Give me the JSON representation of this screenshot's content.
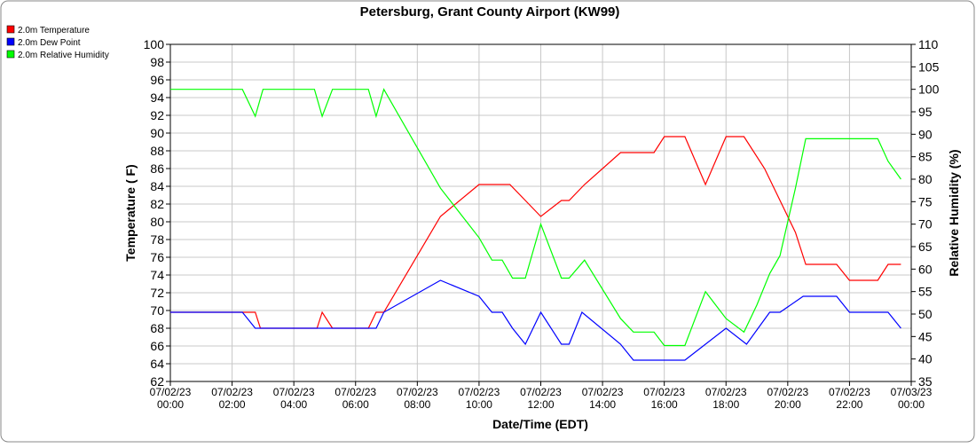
{
  "chart_data": {
    "type": "line",
    "title": "Petersburg, Grant County Airport (KW99)",
    "x_label": "Date/Time (EDT)",
    "y_label": "Temperature ( F)",
    "y2_label": "Relative Humidity (%)",
    "xlim": [
      "2023-07-02T00:00",
      "2023-07-03T00:00"
    ],
    "xticks": [
      {
        "value": "2023-07-02T00:00",
        "label": [
          "07/02/23",
          "00:00"
        ]
      },
      {
        "value": "2023-07-02T02:00",
        "label": [
          "07/02/23",
          "02:00"
        ]
      },
      {
        "value": "2023-07-02T04:00",
        "label": [
          "07/02/23",
          "04:00"
        ]
      },
      {
        "value": "2023-07-02T06:00",
        "label": [
          "07/02/23",
          "06:00"
        ]
      },
      {
        "value": "2023-07-02T08:00",
        "label": [
          "07/02/23",
          "08:00"
        ]
      },
      {
        "value": "2023-07-02T10:00",
        "label": [
          "07/02/23",
          "10:00"
        ]
      },
      {
        "value": "2023-07-02T12:00",
        "label": [
          "07/02/23",
          "12:00"
        ]
      },
      {
        "value": "2023-07-02T14:00",
        "label": [
          "07/02/23",
          "14:00"
        ]
      },
      {
        "value": "2023-07-02T16:00",
        "label": [
          "07/02/23",
          "16:00"
        ]
      },
      {
        "value": "2023-07-02T18:00",
        "label": [
          "07/02/23",
          "18:00"
        ]
      },
      {
        "value": "2023-07-02T20:00",
        "label": [
          "07/02/23",
          "20:00"
        ]
      },
      {
        "value": "2023-07-02T22:00",
        "label": [
          "07/02/23",
          "22:00"
        ]
      },
      {
        "value": "2023-07-03T00:00",
        "label": [
          "07/03/23",
          "00:00"
        ]
      }
    ],
    "ylim": [
      62,
      100
    ],
    "yticks": [
      62,
      64,
      66,
      68,
      70,
      72,
      74,
      76,
      78,
      80,
      82,
      84,
      86,
      88,
      90,
      92,
      94,
      96,
      98,
      100
    ],
    "y2lim": [
      35,
      110
    ],
    "y2ticks": [
      35,
      40,
      45,
      50,
      55,
      60,
      65,
      70,
      75,
      80,
      85,
      90,
      95,
      100,
      105,
      110
    ],
    "grid": true,
    "legend": "top-left",
    "series": [
      {
        "name": "2.0m Temperature",
        "color": "#ff0000",
        "x": [
          "2023-07-02T00:00",
          "2023-07-02T02:45",
          "2023-07-02T02:55",
          "2023-07-02T04:45",
          "2023-07-02T04:55",
          "2023-07-02T05:15",
          "2023-07-02T06:25",
          "2023-07-02T06:40",
          "2023-07-02T06:55",
          "2023-07-02T08:45",
          "2023-07-02T10:00",
          "2023-07-02T11:00",
          "2023-07-02T11:30",
          "2023-07-02T12:00",
          "2023-07-02T12:40",
          "2023-07-02T12:55",
          "2023-07-02T13:25",
          "2023-07-02T14:35",
          "2023-07-02T15:40",
          "2023-07-02T16:00",
          "2023-07-02T16:40",
          "2023-07-02T17:20",
          "2023-07-02T18:00",
          "2023-07-02T18:35",
          "2023-07-02T19:15",
          "2023-07-02T20:15",
          "2023-07-02T20:35",
          "2023-07-02T21:35",
          "2023-07-02T22:00",
          "2023-07-02T22:55",
          "2023-07-02T23:15",
          "2023-07-02T23:40"
        ],
        "values": [
          69.8,
          69.8,
          68,
          68,
          69.8,
          68,
          68,
          69.8,
          69.8,
          80.6,
          84.2,
          84.2,
          82.4,
          80.6,
          82.4,
          82.4,
          84.2,
          87.8,
          87.8,
          89.6,
          89.6,
          84.2,
          89.6,
          89.6,
          86,
          78.8,
          75.2,
          75.2,
          73.4,
          73.4,
          75.2,
          75.2
        ]
      },
      {
        "name": "2.0m Dew Point",
        "color": "#0000ff",
        "x": [
          "2023-07-02T00:00",
          "2023-07-02T02:20",
          "2023-07-02T02:45",
          "2023-07-02T06:40",
          "2023-07-02T06:55",
          "2023-07-02T08:45",
          "2023-07-02T10:00",
          "2023-07-02T10:25",
          "2023-07-02T10:45",
          "2023-07-02T11:05",
          "2023-07-02T11:30",
          "2023-07-02T12:00",
          "2023-07-02T12:40",
          "2023-07-02T12:55",
          "2023-07-02T13:20",
          "2023-07-02T14:35",
          "2023-07-02T15:00",
          "2023-07-02T16:40",
          "2023-07-02T18:00",
          "2023-07-02T18:40",
          "2023-07-02T19:25",
          "2023-07-02T19:45",
          "2023-07-02T20:30",
          "2023-07-02T21:35",
          "2023-07-02T22:00",
          "2023-07-02T23:15",
          "2023-07-02T23:40"
        ],
        "values": [
          69.8,
          69.8,
          68,
          68,
          69.8,
          73.4,
          71.6,
          69.8,
          69.8,
          68,
          66.2,
          69.8,
          66.2,
          66.2,
          69.8,
          66.2,
          64.4,
          64.4,
          68,
          66.2,
          69.8,
          69.8,
          71.6,
          71.6,
          69.8,
          69.8,
          68
        ]
      },
      {
        "name": "2.0m Relative Humidity",
        "color": "#00ff00",
        "axis": "y2",
        "x": [
          "2023-07-02T00:00",
          "2023-07-02T02:20",
          "2023-07-02T02:45",
          "2023-07-02T03:00",
          "2023-07-02T04:40",
          "2023-07-02T04:55",
          "2023-07-02T05:15",
          "2023-07-02T06:25",
          "2023-07-02T06:40",
          "2023-07-02T06:55",
          "2023-07-02T08:45",
          "2023-07-02T10:00",
          "2023-07-02T10:25",
          "2023-07-02T10:45",
          "2023-07-02T11:05",
          "2023-07-02T11:30",
          "2023-07-02T12:00",
          "2023-07-02T12:40",
          "2023-07-02T12:55",
          "2023-07-02T13:25",
          "2023-07-02T14:35",
          "2023-07-02T15:00",
          "2023-07-02T15:40",
          "2023-07-02T16:00",
          "2023-07-02T16:40",
          "2023-07-02T17:20",
          "2023-07-02T18:00",
          "2023-07-02T18:35",
          "2023-07-02T19:00",
          "2023-07-02T19:25",
          "2023-07-02T19:45",
          "2023-07-02T20:15",
          "2023-07-02T20:35",
          "2023-07-02T21:35",
          "2023-07-02T22:00",
          "2023-07-02T22:55",
          "2023-07-02T23:15",
          "2023-07-02T23:40"
        ],
        "values": [
          100,
          100,
          94,
          100,
          100,
          94,
          100,
          100,
          94,
          100,
          78,
          67,
          62,
          62,
          58,
          58,
          70,
          58,
          58,
          62,
          49,
          46,
          46,
          43,
          43,
          55,
          49,
          46,
          52,
          59,
          63,
          78,
          89,
          89,
          89,
          89,
          84,
          80
        ]
      }
    ]
  }
}
